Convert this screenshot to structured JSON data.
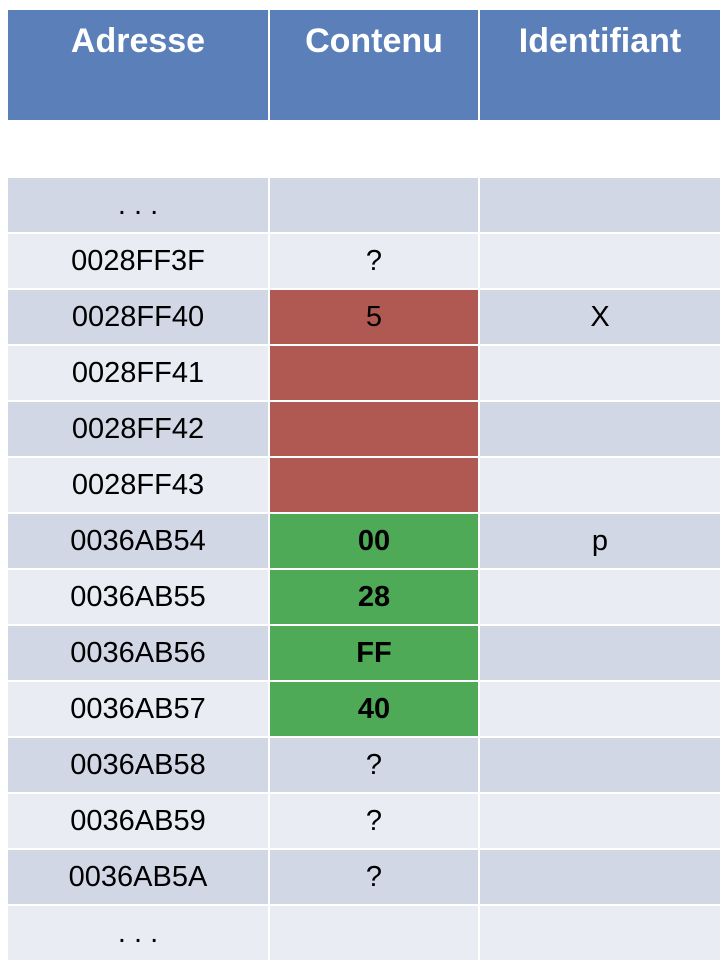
{
  "header": {
    "address": "Adresse",
    "content": "Contenu",
    "identifier": "Identifiant"
  },
  "rows": [
    {
      "address": ". . .",
      "content": "",
      "identifier": ""
    },
    {
      "address": "0028FF3F",
      "content": "?",
      "identifier": ""
    },
    {
      "address": "0028FF40",
      "content": "5",
      "identifier": "X"
    },
    {
      "address": "0028FF41",
      "content": "",
      "identifier": ""
    },
    {
      "address": "0028FF42",
      "content": "",
      "identifier": ""
    },
    {
      "address": "0028FF43",
      "content": "",
      "identifier": ""
    },
    {
      "address": "0036AB54",
      "content": "00",
      "identifier": "p"
    },
    {
      "address": "0036AB55",
      "content": "28",
      "identifier": ""
    },
    {
      "address": "0036AB56",
      "content": "FF",
      "identifier": ""
    },
    {
      "address": "0036AB57",
      "content": "40",
      "identifier": ""
    },
    {
      "address": "0036AB58",
      "content": "?",
      "identifier": ""
    },
    {
      "address": "0036AB59",
      "content": "?",
      "identifier": ""
    },
    {
      "address": "0036AB5A",
      "content": "?",
      "identifier": ""
    },
    {
      "address": ". . .",
      "content": "",
      "identifier": ""
    }
  ],
  "colors": {
    "header_bg": "#5b7fb8",
    "row_light": "#e9ecf3",
    "row_dark": "#d1d7e5",
    "highlight_red_cell": "#b05952",
    "highlight_green_cell": "#4faa58",
    "red_text": "#de2b21"
  }
}
